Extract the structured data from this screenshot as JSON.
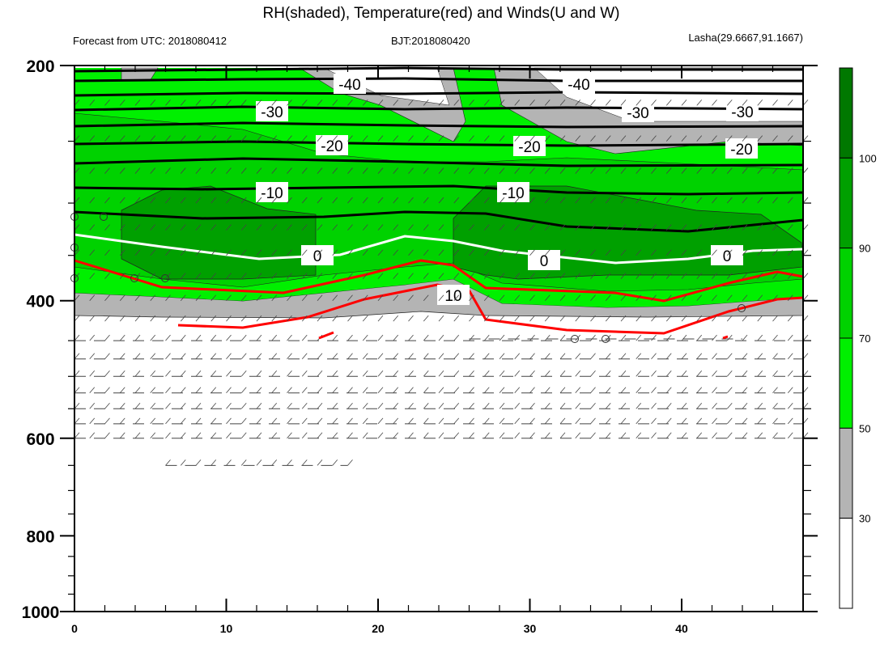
{
  "chart_data": {
    "type": "contour",
    "title": "RH(shaded), Temperature(red) and Winds(U and W)",
    "subtitle_left": "Forecast from UTC: 2018080412",
    "subtitle_center": "BJT:2018080420",
    "subtitle_right": "Lasha(29.6667,91.1667)",
    "x_axis": {
      "range": [
        0,
        48
      ],
      "ticks": [
        0,
        10,
        20,
        30,
        40
      ],
      "labels": [
        "0",
        "10",
        "20",
        "30",
        "40"
      ]
    },
    "y_axis": {
      "range": [
        200,
        1000
      ],
      "scale": "log",
      "inverted": true,
      "ticks": [
        200,
        400,
        600,
        800,
        1000
      ],
      "labels": [
        "200",
        "400",
        "600",
        "800",
        "1000"
      ]
    },
    "colorbar": {
      "levels": [
        "30",
        "50",
        "70",
        "90",
        "100"
      ],
      "colors": [
        "#ffffff",
        "#b4b4b4",
        "#00f000",
        "#00d200",
        "#00a000",
        "#007800"
      ]
    },
    "temperature_contours": {
      "labels": [
        "-40",
        "-40",
        "-30",
        "-30",
        "-30",
        "-20",
        "-20",
        "-20",
        "-10",
        "-10",
        "0",
        "0",
        "0",
        "10"
      ],
      "freezing_line_color": "#ffffff",
      "warm_line_color": "#ff0000",
      "cold_line_color": "#000000"
    },
    "wind_rows_hpa": [
      225,
      250,
      275,
      300,
      325,
      350,
      375,
      400,
      425,
      450,
      475,
      500,
      525,
      550,
      575,
      600,
      650
    ]
  }
}
